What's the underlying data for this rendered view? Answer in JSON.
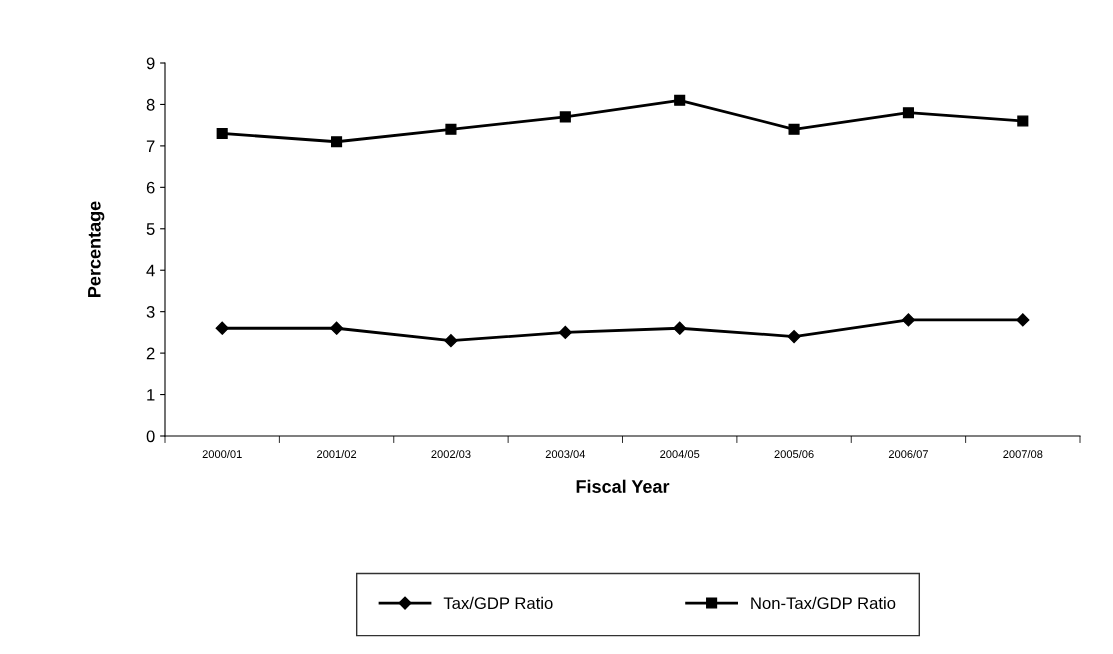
{
  "chart_data": {
    "type": "line",
    "xlabel": "Fiscal Year",
    "ylabel": "Percentage",
    "categories": [
      "2000/01",
      "2001/02",
      "2002/03",
      "2003/04",
      "2004/05",
      "2005/06",
      "2006/07",
      "2007/08"
    ],
    "series": [
      {
        "name": "Tax/GDP Ratio",
        "color": "#000000",
        "marker": "diamond",
        "values": [
          2.6,
          2.6,
          2.3,
          2.5,
          2.6,
          2.4,
          2.8,
          2.8
        ]
      },
      {
        "name": "Non-Tax/GDP Ratio",
        "color": "#000000",
        "marker": "square",
        "values": [
          7.3,
          7.1,
          7.4,
          7.7,
          8.1,
          7.4,
          7.8,
          7.6
        ]
      }
    ],
    "ylim": [
      0,
      9
    ],
    "yticks": [
      0,
      1,
      2,
      3,
      4,
      5,
      6,
      7,
      8,
      9
    ],
    "grid": false,
    "legend": "bottom",
    "line_style": "solid"
  }
}
